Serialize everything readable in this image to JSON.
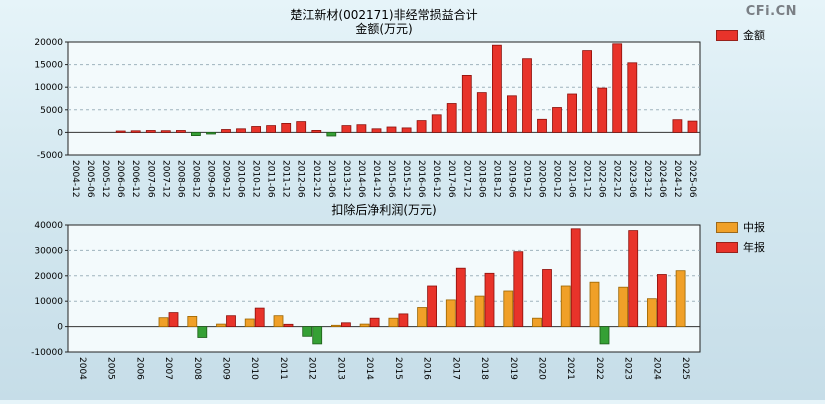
{
  "logo": {
    "text": "CFi.CN"
  },
  "chart_data": [
    {
      "type": "bar",
      "title": "楚江新材(002171)非经常损益合计",
      "subtitle": "金额(万元)",
      "ylim": [
        -5000,
        20000
      ],
      "ytick_step": 5000,
      "yticks": [
        20000,
        15000,
        10000,
        5000,
        0,
        -5000
      ],
      "grid": true,
      "legend_position": "right",
      "negative_color": "#35a035",
      "negative_border": "#1c5c18",
      "categories": [
        "2004-12",
        "2005-06",
        "2005-12",
        "2006-06",
        "2006-12",
        "2007-06",
        "2007-12",
        "2008-06",
        "2008-12",
        "2009-06",
        "2009-12",
        "2010-06",
        "2010-12",
        "2011-06",
        "2011-12",
        "2012-06",
        "2012-12",
        "2013-06",
        "2013-12",
        "2014-06",
        "2014-12",
        "2015-06",
        "2015-12",
        "2016-06",
        "2016-12",
        "2017-06",
        "2017-12",
        "2018-06",
        "2018-12",
        "2019-06",
        "2019-12",
        "2020-06",
        "2020-12",
        "2021-06",
        "2021-12",
        "2022-06",
        "2022-12",
        "2023-06",
        "2023-12",
        "2024-06",
        "2024-12",
        "2025-06"
      ],
      "series": [
        {
          "name": "金额",
          "color": "#e8332a",
          "border": "#8b0f0a",
          "values": [
            null,
            null,
            null,
            300,
            350,
            420,
            380,
            420,
            -700,
            -350,
            650,
            800,
            1300,
            1500,
            2000,
            2400,
            450,
            -800,
            1500,
            1700,
            800,
            1200,
            1000,
            2600,
            3900,
            6400,
            12600,
            8800,
            19300,
            8100,
            16300,
            2900,
            5500,
            8500,
            18100,
            9800,
            19600,
            15400,
            null,
            null,
            2800,
            2500
          ]
        }
      ]
    },
    {
      "type": "bar",
      "title": "扣除后净利润(万元)",
      "ylim": [
        -10000,
        40000
      ],
      "ytick_step": 10000,
      "yticks": [
        40000,
        30000,
        20000,
        10000,
        0,
        -10000
      ],
      "grid": true,
      "legend_position": "right",
      "negative_color": "#35a035",
      "negative_border": "#1c5c18",
      "categories": [
        "2004",
        "2005",
        "2006",
        "2007",
        "2008",
        "2009",
        "2010",
        "2011",
        "2012",
        "2013",
        "2014",
        "2015",
        "2016",
        "2017",
        "2018",
        "2019",
        "2020",
        "2021",
        "2022",
        "2023",
        "2024",
        "2025"
      ],
      "series": [
        {
          "name": "中报",
          "color": "#f0a028",
          "border": "#9a6400",
          "values": [
            null,
            null,
            null,
            3500,
            4000,
            1000,
            3000,
            4300,
            -3800,
            500,
            1000,
            3300,
            7500,
            10500,
            12000,
            14000,
            3300,
            16000,
            17500,
            15500,
            11000,
            22000
          ]
        },
        {
          "name": "年报",
          "color": "#e8332a",
          "border": "#8b0f0a",
          "values": [
            null,
            null,
            null,
            5500,
            -4300,
            4300,
            7300,
            900,
            -6800,
            1500,
            3300,
            5000,
            16000,
            23000,
            21000,
            29500,
            22500,
            38500,
            -6800,
            37800,
            20500,
            null
          ]
        }
      ]
    }
  ]
}
